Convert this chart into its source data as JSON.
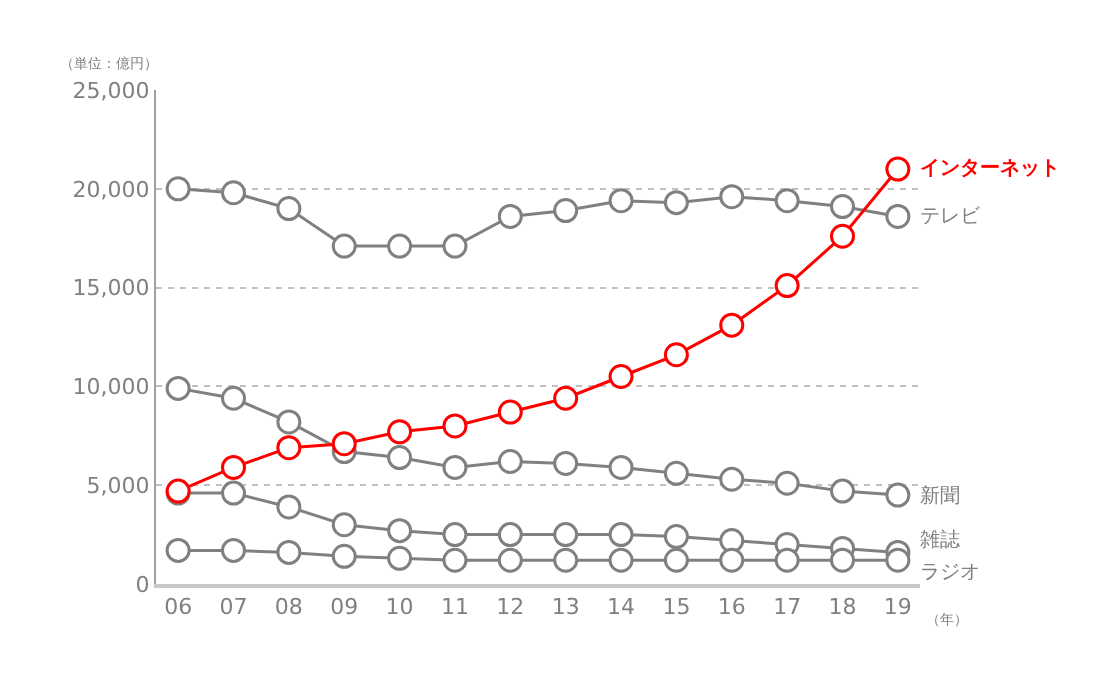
{
  "chart_data": {
    "type": "line",
    "categories": [
      "06",
      "07",
      "08",
      "09",
      "10",
      "11",
      "12",
      "13",
      "14",
      "15",
      "16",
      "17",
      "18",
      "19"
    ],
    "series": [
      {
        "name": "テレビ",
        "color": "#808080",
        "values": [
          20000,
          19800,
          19000,
          17100,
          17100,
          17100,
          18600,
          18900,
          19400,
          19300,
          19600,
          19400,
          19100,
          18600
        ]
      },
      {
        "name": "新聞",
        "color": "#808080",
        "values": [
          9900,
          9400,
          8200,
          6700,
          6400,
          5900,
          6200,
          6100,
          5900,
          5600,
          5300,
          5100,
          4700,
          4500
        ]
      },
      {
        "name": "雑誌",
        "color": "#808080",
        "values": [
          4600,
          4600,
          3900,
          3000,
          2700,
          2500,
          2500,
          2500,
          2500,
          2400,
          2200,
          2000,
          1800,
          1600
        ]
      },
      {
        "name": "ラジオ",
        "color": "#808080",
        "values": [
          1700,
          1700,
          1600,
          1400,
          1300,
          1200,
          1200,
          1200,
          1200,
          1200,
          1200,
          1200,
          1200,
          1200
        ]
      },
      {
        "name": "インターネット",
        "color": "#ff0000",
        "values": [
          4700,
          5900,
          6900,
          7100,
          7700,
          8000,
          8700,
          9400,
          10500,
          11600,
          13100,
          15100,
          17600,
          21000
        ]
      }
    ],
    "ylim": [
      0,
      25000
    ],
    "yticks": [
      {
        "value": 0,
        "label": "0"
      },
      {
        "value": 5000,
        "label": "5,000"
      },
      {
        "value": 10000,
        "label": "10,000"
      },
      {
        "value": 15000,
        "label": "15,000"
      },
      {
        "value": 20000,
        "label": "20,000"
      },
      {
        "value": 25000,
        "label": "25,000"
      }
    ],
    "grid": "y",
    "legend": false,
    "marker": "circle",
    "line_style": "solid",
    "annotations": [
      "（単位：億円）",
      "（年）"
    ]
  }
}
